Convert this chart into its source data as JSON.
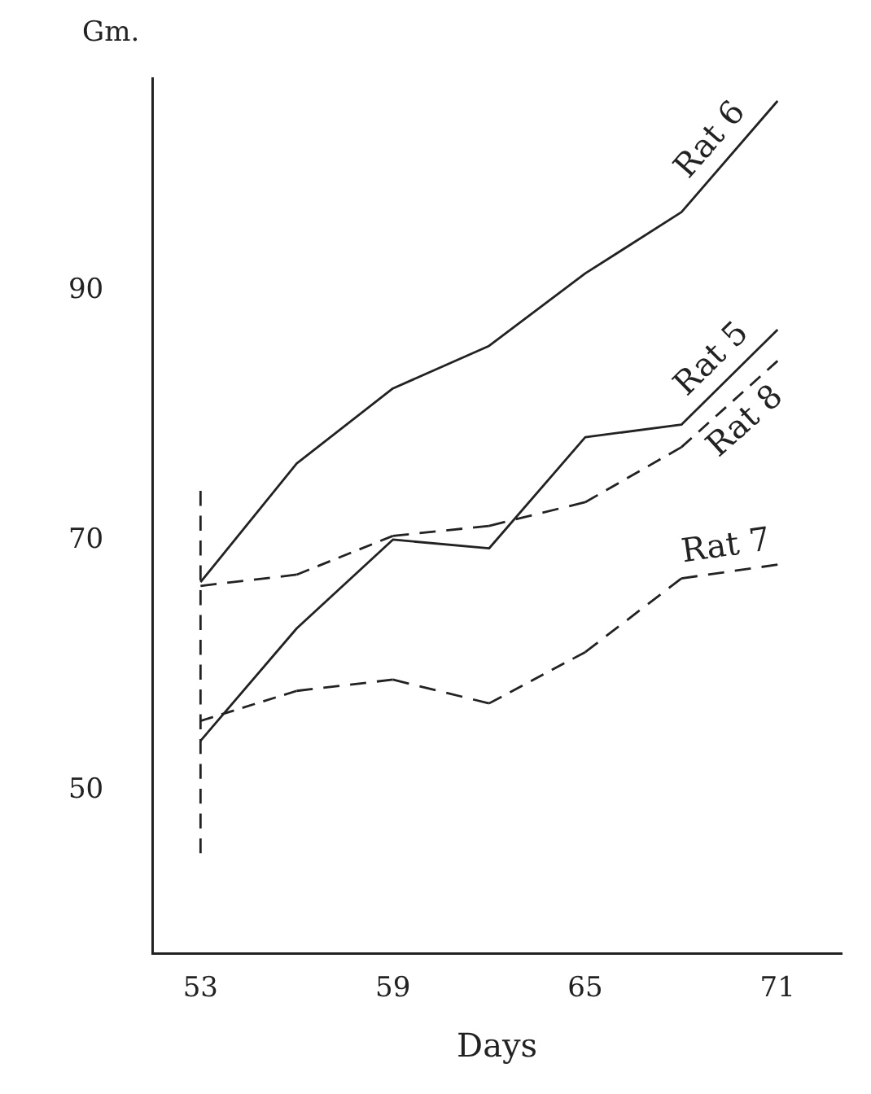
{
  "chart_data": {
    "type": "line",
    "xlabel": "Days",
    "ylabel": "Gm.",
    "x": [
      53,
      56,
      59,
      62,
      65,
      68,
      71
    ],
    "series": [
      {
        "name": "Rat 6",
        "color": "#222222",
        "line_style": "solid",
        "values": [
          66.7,
          76.2,
          82.2,
          85.6,
          91.4,
          96.3,
          105.2
        ]
      },
      {
        "name": "Rat 5",
        "color": "#222222",
        "line_style": "solid",
        "values": [
          54.0,
          63.0,
          70.1,
          69.4,
          78.3,
          79.3,
          86.9
        ]
      },
      {
        "name": "Rat 8",
        "color": "#222222",
        "line_style": "dashed",
        "values": [
          66.4,
          67.3,
          70.4,
          71.2,
          73.1,
          77.5,
          84.4
        ]
      },
      {
        "name": "Rat 7",
        "color": "#222222",
        "line_style": "dashed",
        "values": [
          55.6,
          58.0,
          58.9,
          57.0,
          61.1,
          67.0,
          68.1
        ]
      },
      {
        "type": "line",
        "color": "#222222",
        "line_style": "dashed",
        "x": [
          53,
          53
        ],
        "values": [
          45,
          74
        ]
      }
    ],
    "xlim": [
      51.5,
      73
    ],
    "ylim": [
      37,
      107
    ],
    "xticks": [
      53,
      59,
      65,
      71
    ],
    "yticks": [
      50,
      70,
      90
    ],
    "grid": false,
    "legend": false,
    "marker": "none"
  }
}
